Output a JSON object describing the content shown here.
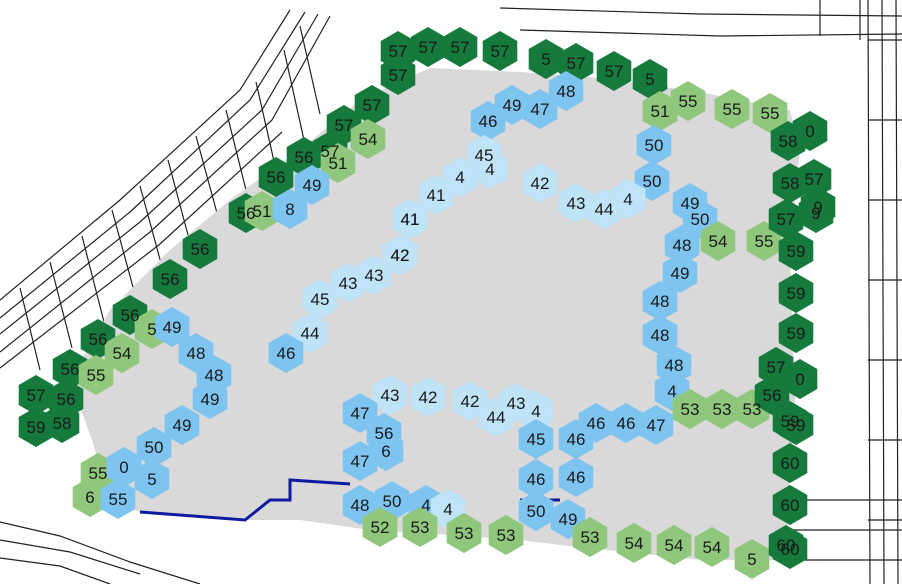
{
  "colors": {
    "background": "#ffffff",
    "area_fill": "#d9d9d9",
    "road_stroke": "#222222",
    "boundary_line": "#0d1b9e",
    "legend": {
      "level_52_56": "#8fc77c",
      "level_56_plus": "#157a3c",
      "level_46_51": "#7ec4f0",
      "level_40_45": "#bfe3f7"
    }
  },
  "grid_labels": [
    "57",
    "57",
    "57",
    "57",
    "5",
    "57",
    "57",
    "5",
    "57",
    "57",
    "57",
    "54",
    "57",
    "56",
    "51",
    "56",
    "49",
    "56",
    "51",
    "8",
    "56",
    "56",
    "56",
    "5",
    "49",
    "56",
    "54",
    "56",
    "55",
    "46",
    "49",
    "47",
    "48",
    "51",
    "55",
    "55",
    "55",
    "58",
    "0",
    "50",
    "50",
    "49",
    "50",
    "58",
    "57",
    "9",
    "45",
    "4",
    "4",
    "42",
    "41",
    "41",
    "43",
    "44",
    "4",
    "41",
    "48",
    "54",
    "55",
    "57",
    "9",
    "42",
    "49",
    "59",
    "43",
    "43",
    "42",
    "48",
    "59",
    "44",
    "48",
    "59",
    "45",
    "46",
    "48",
    "57",
    "0",
    "48",
    "48",
    "4",
    "53",
    "53",
    "53",
    "56",
    "59",
    "49",
    "43",
    "42",
    "42",
    "43",
    "44",
    "4",
    "57",
    "56",
    "59",
    "58",
    "49",
    "47",
    "56",
    "45",
    "46",
    "46",
    "46",
    "47",
    "59",
    "50",
    "47",
    "6",
    "46",
    "46",
    "60",
    "55",
    "0",
    "5",
    "6",
    "55",
    "60",
    "48",
    "50",
    "4",
    "4",
    "50",
    "49",
    "60",
    "52",
    "53",
    "53",
    "53",
    "53",
    "54",
    "54",
    "54",
    "5",
    "60"
  ]
}
